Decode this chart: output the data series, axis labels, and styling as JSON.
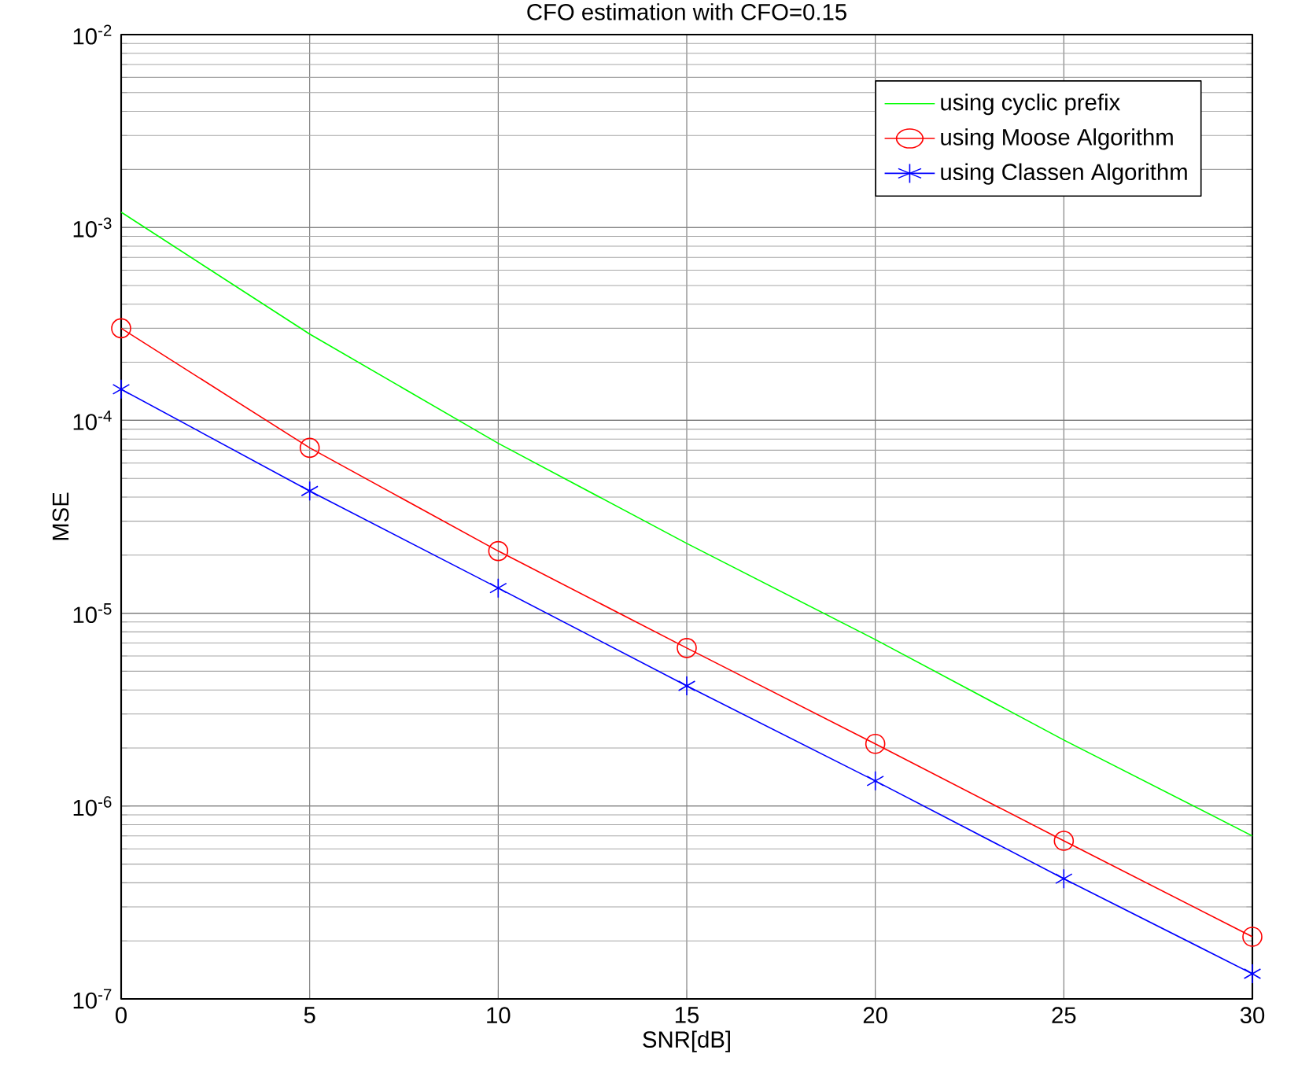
{
  "chart_data": {
    "type": "line",
    "title": "CFO estimation with CFO=0.15",
    "xlabel": "SNR[dB]",
    "ylabel": "MSE",
    "x": [
      0,
      5,
      10,
      15,
      20,
      25,
      30
    ],
    "series": [
      {
        "name": "using cyclic prefix",
        "color": "#00ff00",
        "marker": "none",
        "values": [
          0.0012,
          0.00028,
          7.6e-05,
          2.3e-05,
          7.3e-06,
          2.2e-06,
          7e-07
        ]
      },
      {
        "name": "using Moose Algorithm",
        "color": "#ff0000",
        "marker": "circle",
        "values": [
          0.0003,
          7.2e-05,
          2.1e-05,
          6.6e-06,
          2.1e-06,
          6.6e-07,
          2.1e-07
        ]
      },
      {
        "name": "using Classen Algorithm",
        "color": "#0000ff",
        "marker": "cross",
        "values": [
          0.000145,
          4.3e-05,
          1.35e-05,
          4.2e-06,
          1.35e-06,
          4.2e-07,
          1.35e-07
        ]
      }
    ],
    "log": "y",
    "xlim": [
      0,
      30
    ],
    "ylim": [
      1e-07,
      0.01
    ],
    "xticks": [
      0,
      5,
      10,
      15,
      20,
      25,
      30
    ],
    "yticks": [
      {
        "value": 1e-07,
        "label": "10$^{-7}$"
      },
      {
        "value": 1e-06,
        "label": "10$^{-6}$"
      },
      {
        "value": 1e-05,
        "label": "10$^{-5}$"
      },
      {
        "value": 0.0001,
        "label": "10$^{-4}$"
      },
      {
        "value": 0.001,
        "label": "10$^{-3}$"
      },
      {
        "value": 0.01,
        "label": "10$^{-2}$"
      }
    ],
    "grid": true,
    "legend": "top right",
    "line_style": "solid"
  }
}
